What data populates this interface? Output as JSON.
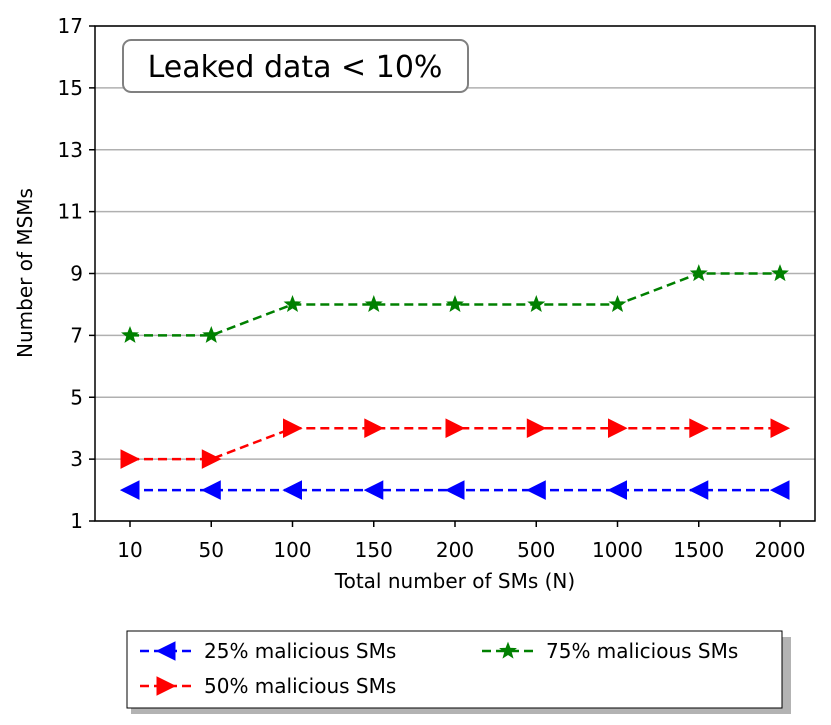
{
  "chart_data": {
    "type": "line",
    "categories": [
      "10",
      "50",
      "100",
      "150",
      "200",
      "500",
      "1000",
      "1500",
      "2000"
    ],
    "xlabel": "Total number of SMs (N)",
    "ylabel": "Number of MSMs",
    "ylim": [
      1,
      17
    ],
    "yticks": [
      "1",
      "3",
      "5",
      "7",
      "9",
      "11",
      "13",
      "15",
      "17"
    ],
    "grid": "horizontal",
    "annotation": "Leaked data < 10%",
    "legend_position": "below",
    "series": [
      {
        "name": "25% malicious SMs",
        "values": [
          2,
          2,
          2,
          2,
          2,
          2,
          2,
          2,
          2
        ],
        "color": "#0000ff",
        "marker": "triangle-left",
        "line": "dashed"
      },
      {
        "name": "50% malicious SMs",
        "values": [
          3,
          3,
          4,
          4,
          4,
          4,
          4,
          4,
          4
        ],
        "color": "#ff0000",
        "marker": "triangle-right",
        "line": "dashed"
      },
      {
        "name": "75% malicious SMs",
        "values": [
          7,
          7,
          8,
          8,
          8,
          8,
          8,
          9,
          9
        ],
        "color": "#008000",
        "marker": "star",
        "line": "dashed"
      }
    ]
  }
}
